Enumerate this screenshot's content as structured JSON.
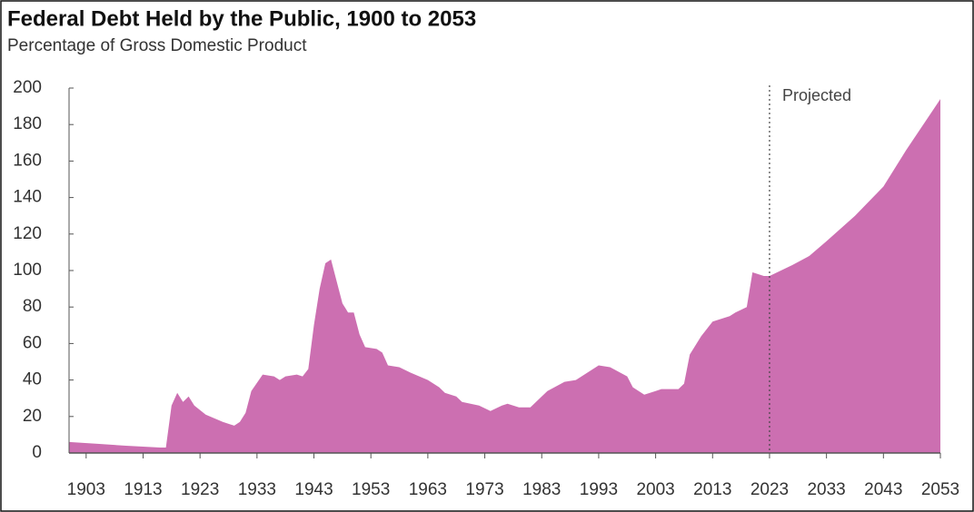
{
  "chart_data": {
    "type": "area",
    "title": "Federal Debt Held by the Public, 1900 to 2053",
    "subtitle": "Percentage of Gross Domestic Product",
    "annotation": {
      "text": "Projected",
      "x": 2023
    },
    "color": "#cc6fb1",
    "x": [
      1900,
      1905,
      1910,
      1916,
      1917,
      1918,
      1919,
      1920,
      1921,
      1922,
      1924,
      1927,
      1929,
      1930,
      1931,
      1932,
      1934,
      1936,
      1937,
      1938,
      1940,
      1941,
      1942,
      1943,
      1944,
      1945,
      1946,
      1947,
      1948,
      1949,
      1950,
      1951,
      1952,
      1954,
      1955,
      1956,
      1958,
      1960,
      1963,
      1965,
      1966,
      1968,
      1969,
      1972,
      1974,
      1976,
      1977,
      1979,
      1981,
      1983,
      1984,
      1987,
      1989,
      1993,
      1995,
      1998,
      1999,
      2001,
      2003,
      2004,
      2007,
      2008,
      2009,
      2011,
      2013,
      2015,
      2016,
      2017,
      2019,
      2020,
      2022,
      2023,
      2027,
      2030,
      2033,
      2038,
      2043,
      2047,
      2053
    ],
    "values": [
      6,
      5,
      4,
      3,
      3,
      26,
      33,
      28,
      31,
      26,
      21,
      17,
      15,
      17,
      22,
      34,
      43,
      42,
      40,
      42,
      43,
      42,
      46,
      70,
      90,
      104,
      106,
      94,
      82,
      77,
      77,
      65,
      58,
      57,
      55,
      48,
      47,
      44,
      40,
      36,
      33,
      31,
      28,
      26,
      23,
      26,
      27,
      25,
      25,
      31,
      34,
      39,
      40,
      48,
      47,
      42,
      36,
      32,
      34,
      35,
      35,
      38,
      54,
      64,
      72,
      74,
      75,
      77,
      80,
      99,
      97,
      97,
      103,
      108,
      116,
      130,
      146,
      166,
      194
    ],
    "xlim": [
      1900,
      2053
    ],
    "xticks": [
      1903,
      1913,
      1923,
      1933,
      1943,
      1953,
      1963,
      1973,
      1983,
      1993,
      2003,
      2013,
      2023,
      2033,
      2043,
      2053
    ],
    "ylim": [
      0,
      200
    ],
    "yticks": [
      0,
      20,
      40,
      60,
      80,
      100,
      120,
      140,
      160,
      180,
      200
    ]
  }
}
